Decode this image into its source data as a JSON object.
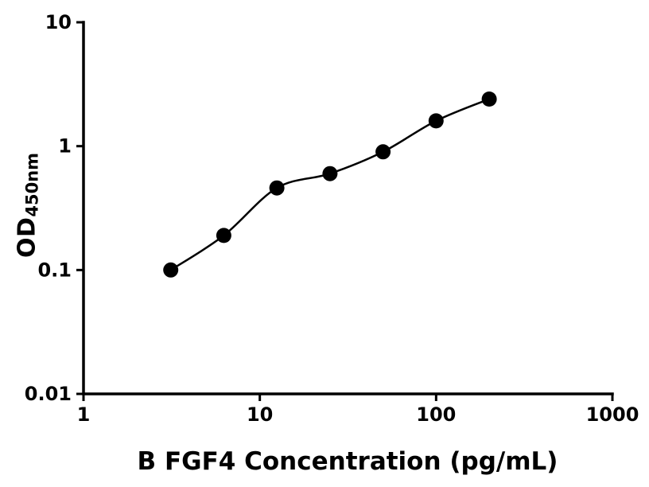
{
  "chart_data": {
    "type": "scatter",
    "title": "",
    "xlabel": "B FGF4 Concentration (pg/mL)",
    "ylabel_main": "OD",
    "ylabel_sub": "450nm",
    "x_scale": "log10",
    "y_scale": "log10",
    "xlim": [
      1,
      1000
    ],
    "ylim": [
      0.01,
      10
    ],
    "x_ticks": [
      1,
      10,
      100,
      1000
    ],
    "x_tick_labels": [
      "1",
      "10",
      "100",
      "1000"
    ],
    "y_ticks": [
      10,
      1,
      0.1,
      0.01
    ],
    "y_tick_labels": [
      "10",
      "1",
      "0.1",
      "0.01"
    ],
    "grid": false,
    "legend": false,
    "background_color": "#ffffff",
    "axis_color": "#000000",
    "series": [
      {
        "name": "",
        "marker": "filled-circle",
        "color": "#000000",
        "line": "smooth-fit",
        "x": [
          3.125,
          6.25,
          12.5,
          25,
          50,
          100,
          200
        ],
        "y": [
          0.1,
          0.19,
          0.46,
          0.6,
          0.9,
          1.6,
          2.4
        ]
      }
    ]
  }
}
